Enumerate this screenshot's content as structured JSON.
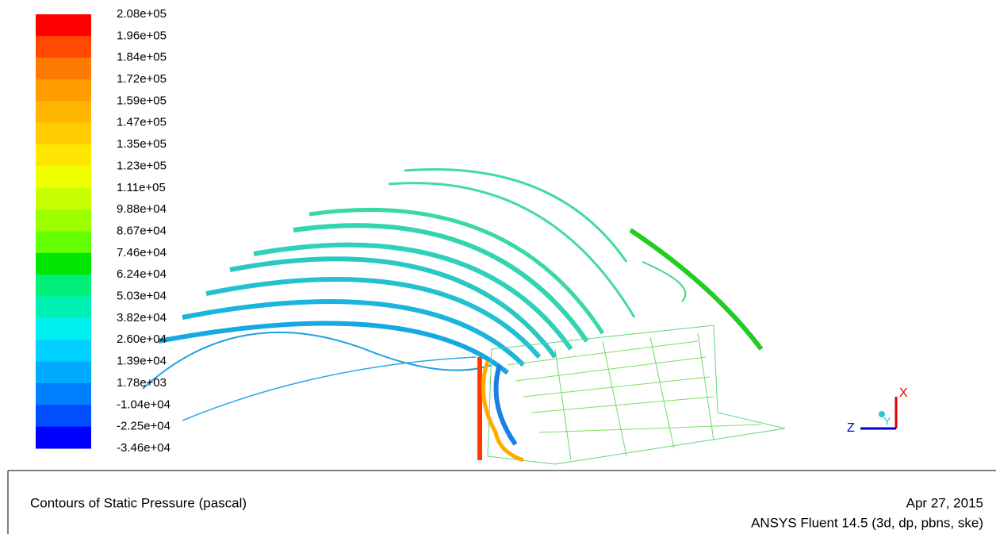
{
  "colorbar": {
    "labels": [
      "2.08e+05",
      "1.96e+05",
      "1.84e+05",
      "1.72e+05",
      "1.59e+05",
      "1.47e+05",
      "1.35e+05",
      "1.23e+05",
      "1.11e+05",
      "9.88e+04",
      "8.67e+04",
      "7.46e+04",
      "6.24e+04",
      "5.03e+04",
      "3.82e+04",
      "2.60e+04",
      "1.39e+04",
      "1.78e+03",
      "-1.04e+04",
      "-2.25e+04",
      "-3.46e+04"
    ],
    "colors": [
      "#ff0000",
      "#ff4a00",
      "#ff7a00",
      "#ff9c00",
      "#ffb600",
      "#ffcc00",
      "#ffe600",
      "#f0ff00",
      "#c8ff00",
      "#9cff00",
      "#64ff00",
      "#00e600",
      "#00f07a",
      "#00f0b4",
      "#00f0f0",
      "#00d0ff",
      "#00aaff",
      "#0080ff",
      "#0050ff",
      "#0000ff"
    ]
  },
  "footer": {
    "title": "Contours of Static Pressure (pascal)",
    "date": "Apr 27, 2015",
    "software": "ANSYS Fluent 14.5 (3d, dp, pbns, ske)"
  },
  "axes": {
    "x": "X",
    "y": "Y",
    "z": "Z"
  }
}
